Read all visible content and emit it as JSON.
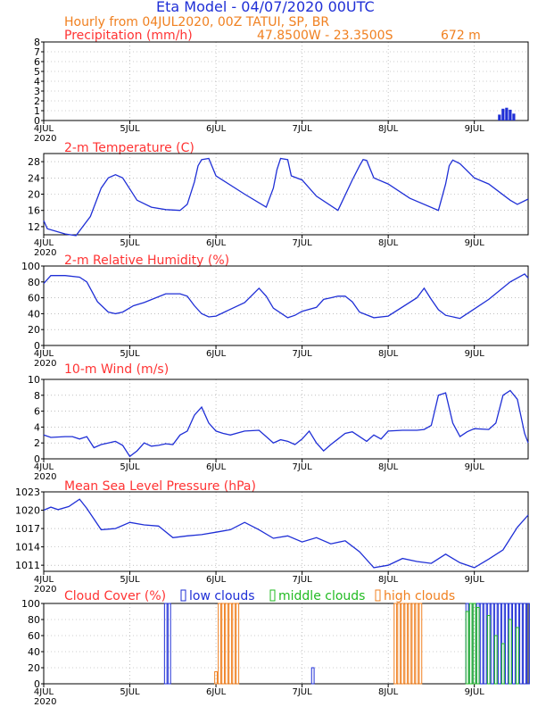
{
  "header": {
    "title": "Eta Model - 04/07/2020 00UTC",
    "subtitle": "Hourly from 04JUL2020, 00Z  TATUI, SP, BR",
    "coords": "47.8500W - 23.3500S",
    "elevation": "672  m"
  },
  "colors": {
    "blue": "#1f2fd6",
    "red": "#ff3333",
    "orange": "#f08020",
    "green": "#22bb22",
    "axis": "#000000",
    "grid": "#999999"
  },
  "x_ticks": [
    "4JUL",
    "5JUL",
    "6JUL",
    "7JUL",
    "8JUL",
    "9JUL"
  ],
  "year_label": "2020",
  "chart_data": [
    {
      "type": "bar",
      "title": "Precipitation (mm/h)",
      "ylim": [
        0,
        8
      ],
      "yticks": [
        0,
        1,
        2,
        3,
        4,
        5,
        6,
        7,
        8
      ],
      "x_hours": [
        127,
        128,
        129,
        130,
        131
      ],
      "values": [
        0.6,
        1.2,
        1.3,
        1.1,
        0.7
      ]
    },
    {
      "type": "line",
      "title": "2-m Temperature (C)",
      "ylim": [
        10,
        30
      ],
      "yticks": [
        12,
        16,
        20,
        24,
        28
      ],
      "x": [
        0,
        1,
        6,
        9,
        13,
        16,
        18,
        20,
        22,
        26,
        30,
        34,
        38,
        40,
        42,
        43,
        44,
        46,
        48,
        56,
        62,
        64,
        65,
        66,
        68,
        69,
        72,
        76,
        82,
        86,
        88,
        89,
        90,
        92,
        96,
        102,
        110,
        112,
        113,
        114,
        116,
        120,
        124,
        130,
        132,
        135
      ],
      "values": [
        13.5,
        11.5,
        10.2,
        9.8,
        14.5,
        21.5,
        24.0,
        24.8,
        24.0,
        18.5,
        16.8,
        16.2,
        16.0,
        17.5,
        23.0,
        27.0,
        28.5,
        28.8,
        24.5,
        20.0,
        16.8,
        21.5,
        26.0,
        28.8,
        28.5,
        24.5,
        23.5,
        19.5,
        16.0,
        23.5,
        27.0,
        28.5,
        28.3,
        24.0,
        22.5,
        19.0,
        16.0,
        22.5,
        27.0,
        28.4,
        27.5,
        24.0,
        22.5,
        18.5,
        17.5,
        18.8
      ]
    },
    {
      "type": "line",
      "title": "2-m Relative Humidity (%)",
      "ylim": [
        0,
        100
      ],
      "yticks": [
        0,
        20,
        40,
        60,
        80,
        100
      ],
      "x": [
        0,
        2,
        6,
        10,
        12,
        15,
        18,
        20,
        22,
        25,
        28,
        34,
        38,
        40,
        42,
        44,
        46,
        48,
        56,
        60,
        62,
        64,
        68,
        70,
        72,
        76,
        78,
        80,
        82,
        84,
        86,
        88,
        92,
        96,
        104,
        106,
        108,
        110,
        112,
        116,
        120,
        124,
        130,
        134,
        135
      ],
      "values": [
        78,
        88,
        88,
        86,
        80,
        55,
        42,
        40,
        42,
        50,
        54,
        65,
        65,
        62,
        50,
        40,
        36,
        37,
        54,
        72,
        62,
        47,
        35,
        38,
        43,
        48,
        58,
        60,
        62,
        62,
        55,
        42,
        35,
        37,
        60,
        72,
        58,
        45,
        38,
        34,
        46,
        58,
        80,
        90,
        85
      ]
    },
    {
      "type": "line",
      "title": "10-m Wind (m/s)",
      "ylim": [
        0,
        10
      ],
      "yticks": [
        0,
        2,
        4,
        6,
        8,
        10
      ],
      "x": [
        0,
        2,
        6,
        8,
        10,
        12,
        14,
        16,
        18,
        20,
        22,
        24,
        26,
        28,
        30,
        32,
        34,
        36,
        38,
        40,
        42,
        44,
        46,
        48,
        50,
        52,
        56,
        60,
        62,
        64,
        66,
        68,
        70,
        72,
        74,
        76,
        78,
        80,
        82,
        84,
        86,
        88,
        90,
        92,
        94,
        96,
        100,
        104,
        106,
        108,
        110,
        112,
        114,
        116,
        118,
        120,
        124,
        126,
        128,
        130,
        132,
        134,
        135
      ],
      "values": [
        3.0,
        2.7,
        2.8,
        2.8,
        2.5,
        2.8,
        1.4,
        1.8,
        2.0,
        2.2,
        1.7,
        0.3,
        1.0,
        2.0,
        1.6,
        1.7,
        1.9,
        1.8,
        3.0,
        3.5,
        5.5,
        6.5,
        4.5,
        3.5,
        3.2,
        3.0,
        3.5,
        3.6,
        2.8,
        2.0,
        2.4,
        2.2,
        1.8,
        2.5,
        3.5,
        2.0,
        1.0,
        1.8,
        2.5,
        3.2,
        3.4,
        2.8,
        2.2,
        3.0,
        2.5,
        3.5,
        3.6,
        3.6,
        3.7,
        4.2,
        8.0,
        8.3,
        4.5,
        2.8,
        3.4,
        3.8,
        3.7,
        4.5,
        8.0,
        8.6,
        7.5,
        3.2,
        2.0
      ]
    },
    {
      "type": "line",
      "title": "Mean Sea Level Pressure (hPa)",
      "ylim": [
        1010,
        1023
      ],
      "yticks": [
        1011,
        1014,
        1017,
        1020,
        1023
      ],
      "yticklabels": [
        "1011",
        "1014",
        "1017",
        "1020",
        "1023"
      ],
      "x": [
        0,
        2,
        4,
        7,
        10,
        12,
        16,
        20,
        24,
        28,
        32,
        36,
        40,
        44,
        48,
        52,
        56,
        60,
        64,
        68,
        72,
        76,
        80,
        84,
        88,
        92,
        96,
        100,
        104,
        108,
        112,
        116,
        120,
        124,
        128,
        132,
        135
      ],
      "values": [
        1020,
        1020.5,
        1020.1,
        1020.6,
        1021.8,
        1020.3,
        1016.8,
        1017.0,
        1018.0,
        1017.6,
        1017.4,
        1015.5,
        1015.8,
        1016.0,
        1016.4,
        1016.8,
        1018.0,
        1016.8,
        1015.4,
        1015.8,
        1014.8,
        1015.5,
        1014.5,
        1015.0,
        1013.2,
        1010.6,
        1011.0,
        1012.1,
        1011.6,
        1011.3,
        1012.8,
        1011.4,
        1010.6,
        1012.0,
        1013.5,
        1017.2,
        1019.2
      ]
    },
    {
      "type": "bar",
      "title": "Cloud Cover (%)",
      "ylim": [
        0,
        100
      ],
      "yticks": [
        0,
        20,
        40,
        60,
        80,
        100
      ],
      "legend": [
        "low clouds",
        "middle clouds",
        "high clouds"
      ],
      "series": [
        {
          "name": "low clouds",
          "color": "#1f2fd6",
          "x": [
            34,
            35,
            75,
            118,
            119,
            120,
            121,
            122,
            123,
            124,
            125,
            126,
            127,
            128,
            129,
            130,
            131,
            132,
            133,
            134,
            135
          ],
          "values": [
            100,
            100,
            20,
            100,
            100,
            100,
            100,
            100,
            100,
            100,
            100,
            100,
            100,
            100,
            100,
            100,
            100,
            100,
            100,
            100,
            100
          ]
        },
        {
          "name": "middle clouds",
          "color": "#22bb22",
          "x": [
            118,
            119,
            120,
            121,
            124,
            126,
            128,
            130,
            132
          ],
          "values": [
            90,
            100,
            100,
            95,
            85,
            60,
            50,
            80,
            70
          ]
        },
        {
          "name": "high clouds",
          "color": "#f08020",
          "x": [
            48,
            49,
            50,
            51,
            52,
            53,
            54,
            98,
            99,
            100,
            101,
            102,
            103,
            104,
            105
          ],
          "values": [
            15,
            100,
            100,
            100,
            100,
            100,
            100,
            100,
            100,
            100,
            100,
            100,
            100,
            100,
            100
          ]
        }
      ]
    }
  ]
}
